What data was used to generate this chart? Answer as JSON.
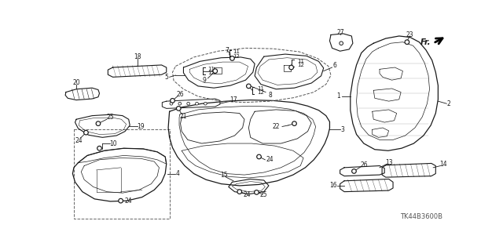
{
  "bg": "#ffffff",
  "lc": "#1a1a1a",
  "tc": "#1a1a1a",
  "diagram_code": "TK44B3600B",
  "figsize": [
    6.4,
    3.19
  ],
  "dpi": 100
}
